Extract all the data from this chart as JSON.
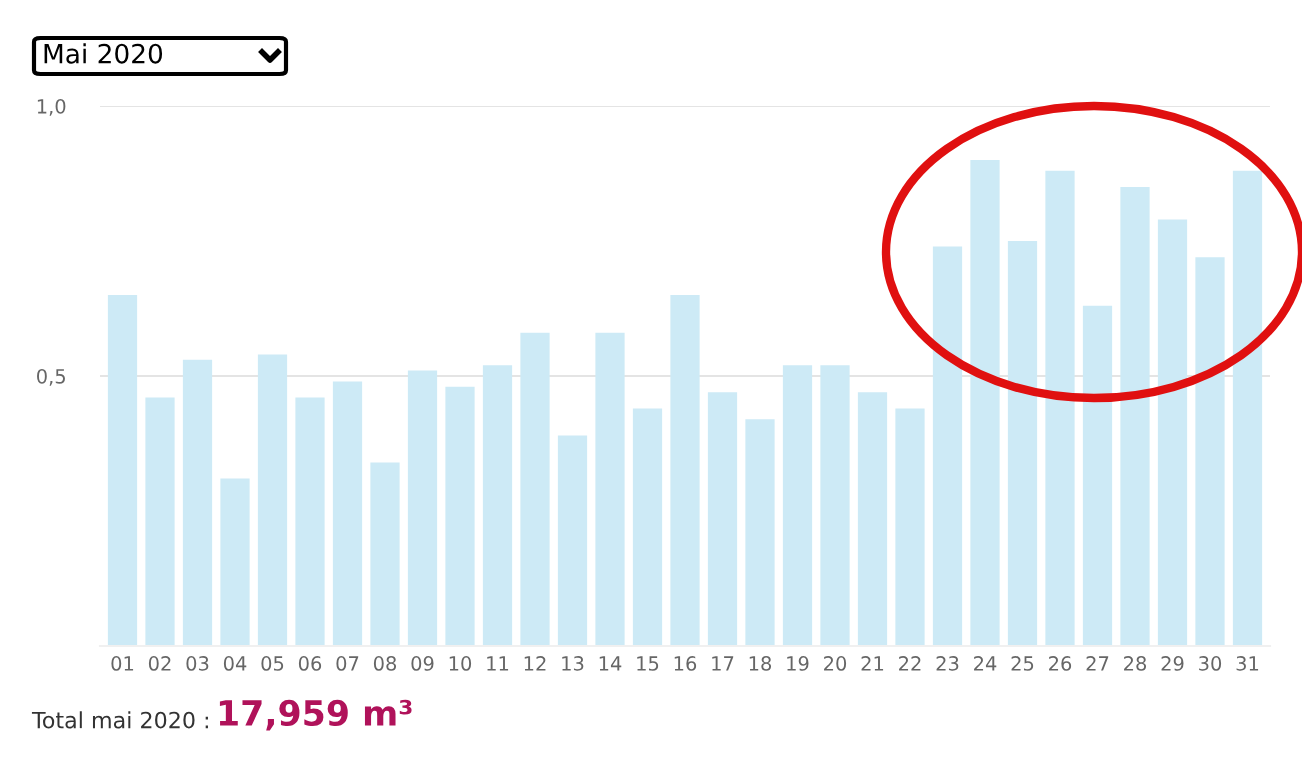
{
  "chart_data": {
    "type": "bar",
    "title": "Mai 2020",
    "categories": [
      "01",
      "02",
      "03",
      "04",
      "05",
      "06",
      "07",
      "08",
      "09",
      "10",
      "11",
      "12",
      "13",
      "14",
      "15",
      "16",
      "17",
      "18",
      "19",
      "20",
      "21",
      "22",
      "23",
      "24",
      "25",
      "26",
      "27",
      "28",
      "29",
      "30",
      "31"
    ],
    "values": [
      0.65,
      0.46,
      0.53,
      0.31,
      0.54,
      0.46,
      0.49,
      0.34,
      0.51,
      0.48,
      0.52,
      0.58,
      0.39,
      0.58,
      0.44,
      0.65,
      0.47,
      0.42,
      0.52,
      0.52,
      0.47,
      0.44,
      0.74,
      0.9,
      0.75,
      0.88,
      0.63,
      0.85,
      0.79,
      0.72,
      0.88
    ],
    "color": "#cdeaf6",
    "ylim": [
      0,
      1.0
    ],
    "yticks": [
      {
        "value": 0.5,
        "label": "0,5"
      },
      {
        "value": 1.0,
        "label": "1,0"
      }
    ],
    "grid": "y",
    "annotations": [
      "Total mai 2020 :",
      "17,959 m³"
    ]
  }
}
